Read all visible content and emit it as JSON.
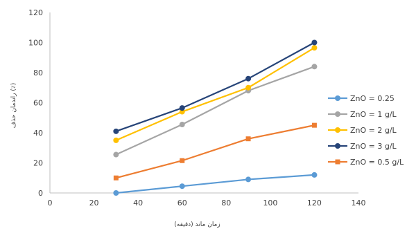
{
  "chart_data": {
    "type": "line",
    "title": "",
    "xlabel": "زمان ماند (دقیقه)",
    "ylabel": "راندمان حذف (٪)",
    "xlim": [
      0,
      140
    ],
    "ylim": [
      0,
      120
    ],
    "x_ticks": [
      0,
      20,
      40,
      60,
      80,
      100,
      120,
      140
    ],
    "y_ticks": [
      0,
      20,
      40,
      60,
      80,
      100,
      120
    ],
    "grid": false,
    "legend_position": "right",
    "series": [
      {
        "name": "ZnO = 0.25",
        "color": "#5b9bd5",
        "marker": "circle",
        "x": [
          30,
          60,
          90,
          120
        ],
        "y": [
          0,
          4.5,
          9,
          12
        ]
      },
      {
        "name": "ZnO = 1 g/L",
        "color": "#a5a5a5",
        "marker": "circle",
        "x": [
          30,
          60,
          90,
          120
        ],
        "y": [
          25.5,
          45.5,
          68,
          84
        ]
      },
      {
        "name": "ZnO = 2 g/L",
        "color": "#ffc000",
        "marker": "circle",
        "x": [
          30,
          60,
          90,
          120
        ],
        "y": [
          35,
          54,
          70,
          96.5
        ]
      },
      {
        "name": "ZnO = 3 g/L",
        "color": "#264478",
        "marker": "circle",
        "x": [
          30,
          60,
          90,
          120
        ],
        "y": [
          41,
          56.5,
          76,
          100
        ]
      },
      {
        "name": "ZnO = 0.5 g/L",
        "color": "#ed7d31",
        "marker": "square",
        "x": [
          30,
          60,
          90,
          120
        ],
        "y": [
          10,
          21.5,
          36,
          45
        ]
      }
    ]
  }
}
